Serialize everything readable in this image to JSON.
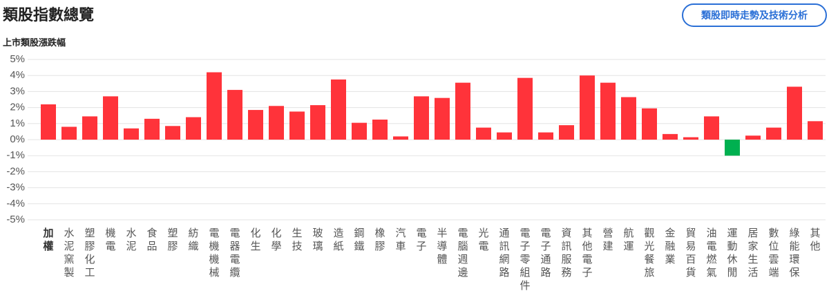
{
  "header": {
    "title": "類股指數總覽",
    "button": "類股即時走勢及技術分析"
  },
  "chart_data": {
    "type": "bar",
    "title": "上市類股漲跌幅",
    "categories": [
      "加權",
      "水泥窯製",
      "塑膠化工",
      "機電",
      "水泥",
      "食品",
      "塑膠",
      "紡織",
      "電機機械",
      "電器電纜",
      "化生",
      "化學",
      "生技",
      "玻璃",
      "造紙",
      "鋼鐵",
      "橡膠",
      "汽車",
      "電子",
      "半導體",
      "電腦週邊",
      "光電",
      "通訊網路",
      "電子零組件",
      "電子通路",
      "資訊服務",
      "其他電子",
      "營建",
      "航運",
      "觀光餐旅",
      "金融業",
      "貿易百貨",
      "油電燃氣",
      "運動休閒",
      "居家生活",
      "數位雲端",
      "綠能環保",
      "其他"
    ],
    "values": [
      2.2,
      0.8,
      1.45,
      2.7,
      0.7,
      1.3,
      0.85,
      1.4,
      4.2,
      3.1,
      1.85,
      2.1,
      1.75,
      2.15,
      3.75,
      1.05,
      1.25,
      0.2,
      2.7,
      2.6,
      3.55,
      0.75,
      0.45,
      3.85,
      0.45,
      0.9,
      4.0,
      3.55,
      2.65,
      1.95,
      0.35,
      0.15,
      1.45,
      -1.0,
      0.25,
      0.75,
      3.3,
      1.15
    ],
    "color": "#ff333a",
    "negative_color": "#00b050",
    "ylim": [
      -5,
      5
    ],
    "yticks": [
      {
        "value": -5,
        "label": "-5%"
      },
      {
        "value": -4,
        "label": "-4%"
      },
      {
        "value": -3,
        "label": "-3%"
      },
      {
        "value": -2,
        "label": "-2%"
      },
      {
        "value": -1,
        "label": "-1%"
      },
      {
        "value": 0,
        "label": "0%"
      },
      {
        "value": 1,
        "label": "1%"
      },
      {
        "value": 2,
        "label": "2%"
      },
      {
        "value": 3,
        "label": "3%"
      },
      {
        "value": 4,
        "label": "4%"
      },
      {
        "value": 5,
        "label": "5%"
      }
    ],
    "grid": true
  }
}
